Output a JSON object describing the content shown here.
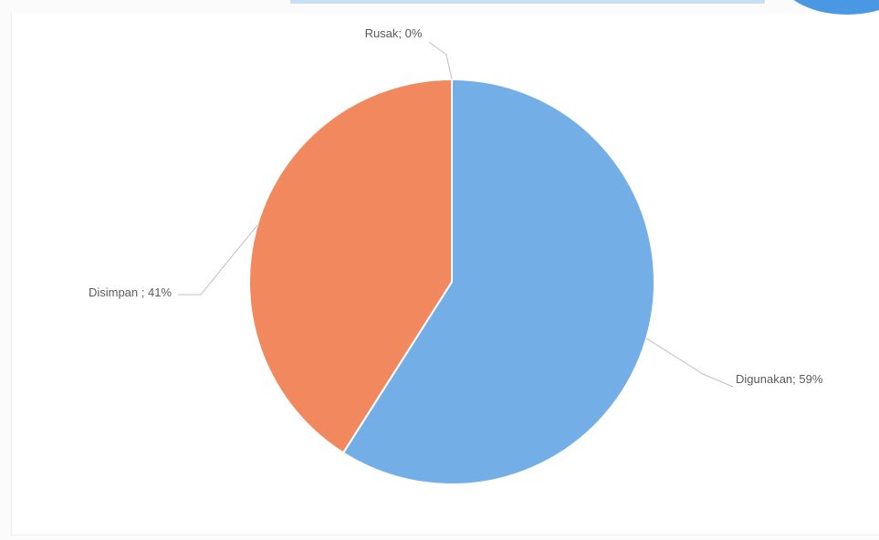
{
  "chart_data": {
    "type": "pie",
    "title": "",
    "slices": [
      {
        "label": "Rusak",
        "value": 0,
        "display": "Rusak; 0%",
        "color": "#4a98e3"
      },
      {
        "label": "Digunakan",
        "value": 59,
        "display": "Digunakan; 59%",
        "color": "#74aee7"
      },
      {
        "label": "Disimpan",
        "value": 41,
        "display": "Disimpan ; 41%",
        "color": "#f2895e"
      }
    ],
    "legend": "none",
    "data_labels": "outside-with-leader-lines"
  },
  "colors": {
    "digunakan": "#74aee7",
    "disimpan": "#f2895e",
    "leader_line": "#bfbfbf",
    "label_text": "#5a5a5a",
    "accent_circle": "#4a98e3"
  }
}
